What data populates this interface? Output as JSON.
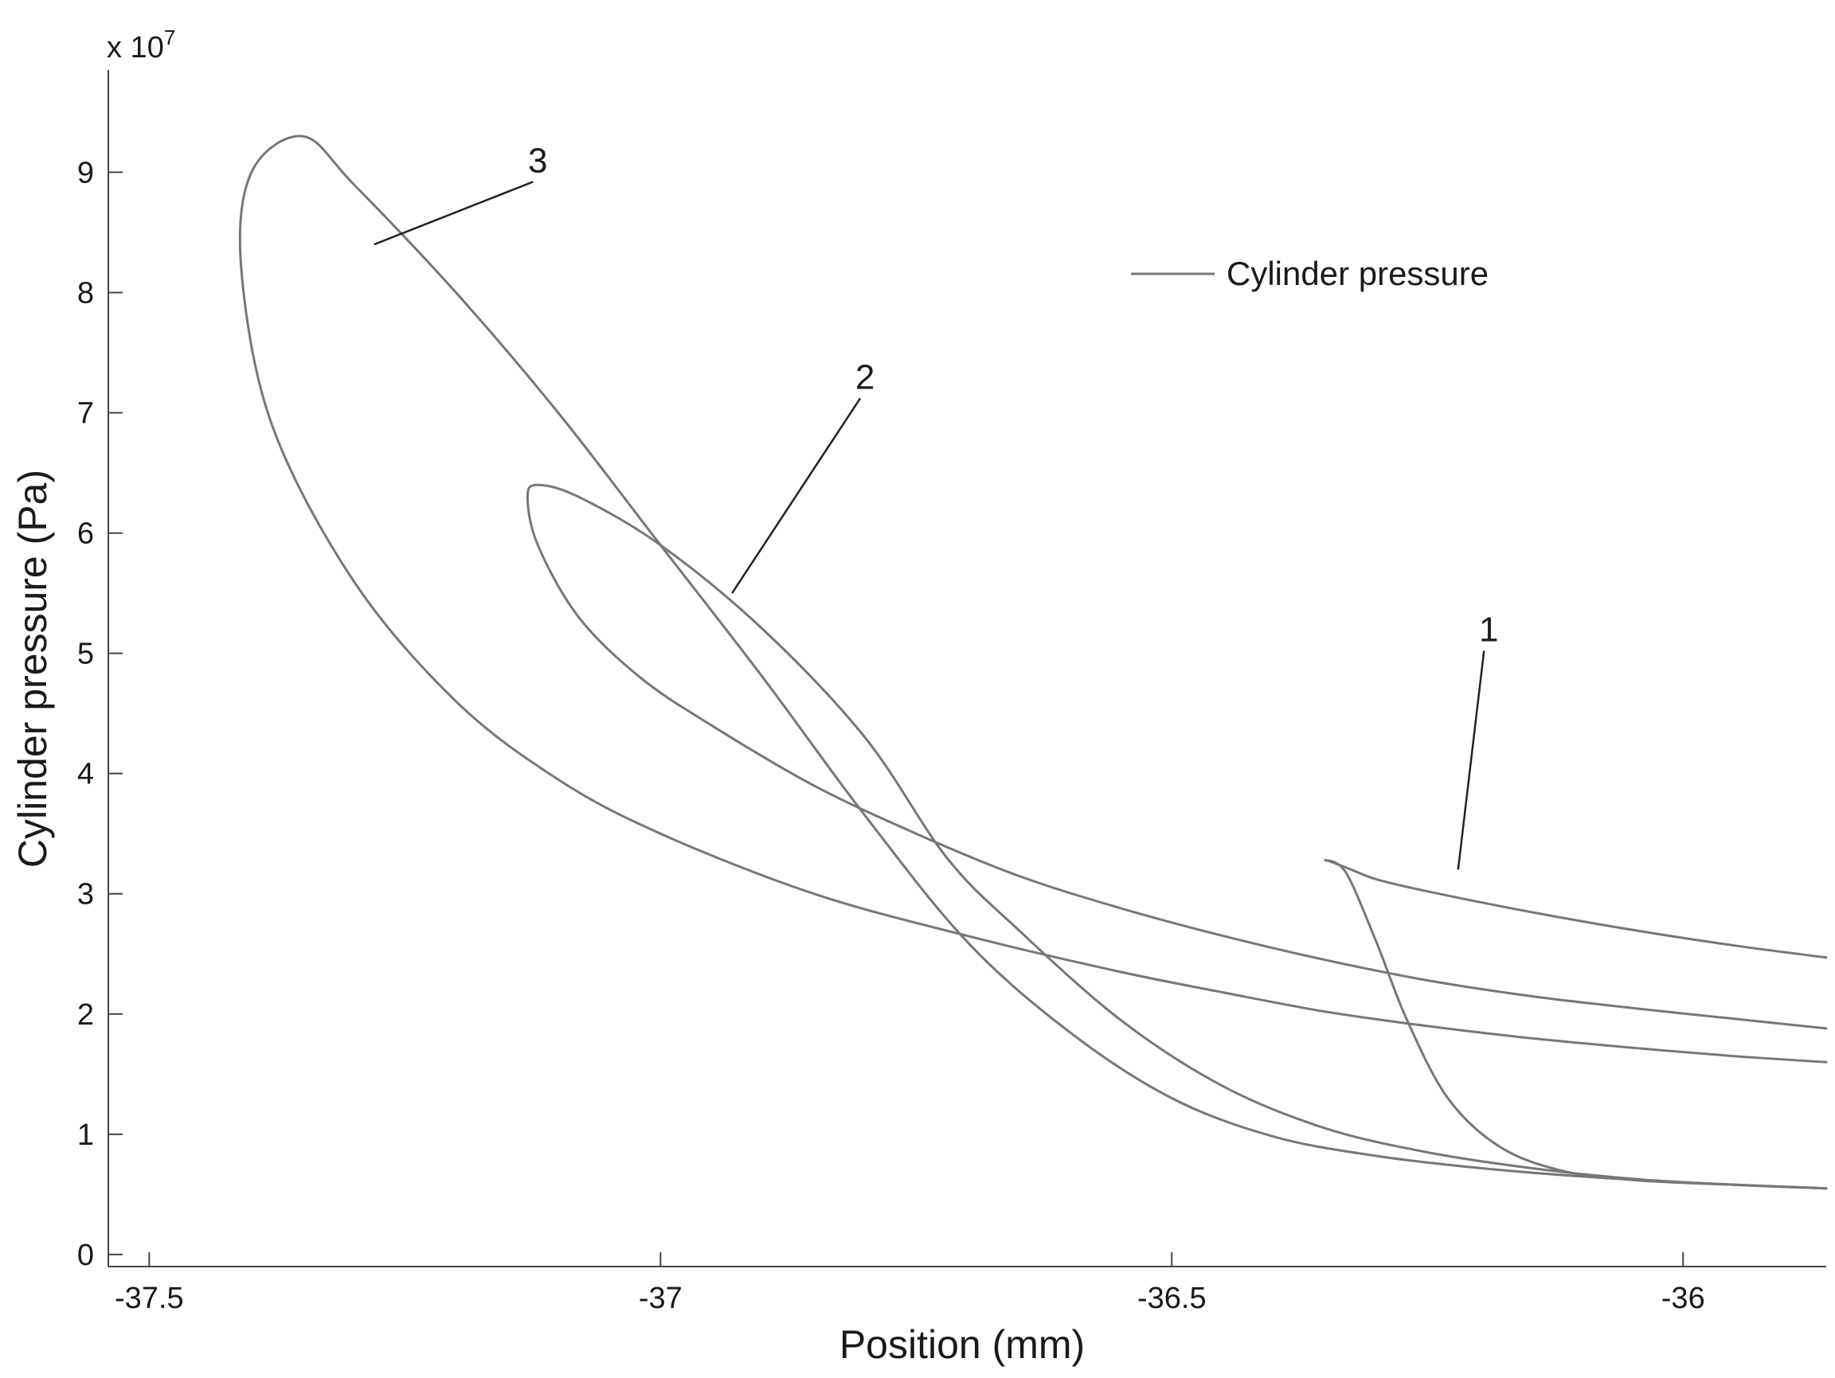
{
  "chart_data": {
    "type": "line",
    "title": "",
    "xlabel": "Position (mm)",
    "ylabel": "Cylinder pressure (Pa)",
    "y_exponent_label": "x 10",
    "y_exponent_power": "7",
    "xlim": [
      -37.54,
      -35.86
    ],
    "ylim": [
      -0.1,
      9.85
    ],
    "x_ticks": [
      -37.5,
      -37,
      -36.5,
      -36
    ],
    "x_tick_labels": [
      "-37.5",
      "-37",
      "-36.5",
      "-36"
    ],
    "y_ticks": [
      0,
      1,
      2,
      3,
      4,
      5,
      6,
      7,
      8,
      9
    ],
    "y_tick_labels": [
      "0",
      "1",
      "2",
      "3",
      "4",
      "5",
      "6",
      "7",
      "8",
      "9"
    ],
    "grid": false,
    "legend": {
      "position": "top-right",
      "entries": [
        "Cylinder pressure"
      ]
    },
    "line_color": "#777777",
    "annotations": [
      {
        "label": "1",
        "text_x": -36.19,
        "text_y": 5.1,
        "tip_x": -36.22,
        "tip_y": 3.2
      },
      {
        "label": "2",
        "text_x": -36.8,
        "text_y": 7.2,
        "tip_x": -36.93,
        "tip_y": 5.5
      },
      {
        "label": "3",
        "text_x": -37.12,
        "text_y": 9.0,
        "tip_x": -37.28,
        "tip_y": 8.4
      }
    ],
    "series": [
      {
        "name": "Cylinder pressure",
        "x": [
          -35.86,
          -35.95,
          -36.05,
          -36.15,
          -36.25,
          -36.35,
          -36.45,
          -36.55,
          -36.7,
          -36.85,
          -37.0,
          -37.1,
          -37.2,
          -37.3,
          -37.38,
          -37.41,
          -37.4,
          -37.35,
          -37.3,
          -37.2,
          -37.1,
          -37.0,
          -36.9,
          -36.8,
          -36.7,
          -36.6,
          -36.5,
          -36.4,
          -36.3,
          -36.2,
          -36.1,
          -36.0,
          -35.86
        ],
        "y": [
          1.6,
          1.65,
          1.72,
          1.8,
          1.9,
          2.02,
          2.18,
          2.35,
          2.65,
          3.0,
          3.5,
          3.95,
          4.6,
          5.6,
          6.9,
          8.2,
          9.0,
          9.3,
          8.9,
          8.0,
          7.0,
          5.9,
          4.8,
          3.65,
          2.6,
          1.85,
          1.3,
          0.98,
          0.82,
          0.72,
          0.65,
          0.6,
          0.55
        ]
      },
      {
        "name": "Cylinder pressure",
        "x": [
          -35.86,
          -35.95,
          -36.05,
          -36.15,
          -36.25,
          -36.35,
          -36.45,
          -36.55,
          -36.65,
          -36.75,
          -36.85,
          -36.95,
          -37.02,
          -37.08,
          -37.12,
          -37.13,
          -37.12,
          -37.08,
          -37.0,
          -36.9,
          -36.8,
          -36.72,
          -36.65,
          -36.55,
          -36.45,
          -36.35,
          -36.25,
          -36.15,
          -36.05,
          -35.95,
          -35.86
        ],
        "y": [
          1.88,
          1.96,
          2.05,
          2.15,
          2.28,
          2.45,
          2.65,
          2.88,
          3.15,
          3.5,
          3.9,
          4.4,
          4.8,
          5.3,
          5.9,
          6.3,
          6.4,
          6.3,
          5.9,
          5.2,
          4.3,
          3.3,
          2.7,
          1.95,
          1.4,
          1.05,
          0.85,
          0.72,
          0.63,
          0.58,
          0.55
        ]
      },
      {
        "name": "Cylinder pressure",
        "x": [
          -35.86,
          -35.95,
          -36.05,
          -36.15,
          -36.25,
          -36.3,
          -36.33,
          -36.35,
          -36.33,
          -36.3,
          -36.27,
          -36.23,
          -36.18,
          -36.12,
          -36.05,
          -35.95,
          -35.86
        ],
        "y": [
          2.47,
          2.57,
          2.7,
          2.85,
          3.02,
          3.12,
          3.22,
          3.28,
          3.18,
          2.6,
          1.95,
          1.3,
          0.9,
          0.7,
          0.62,
          0.58,
          0.55
        ]
      }
    ]
  }
}
